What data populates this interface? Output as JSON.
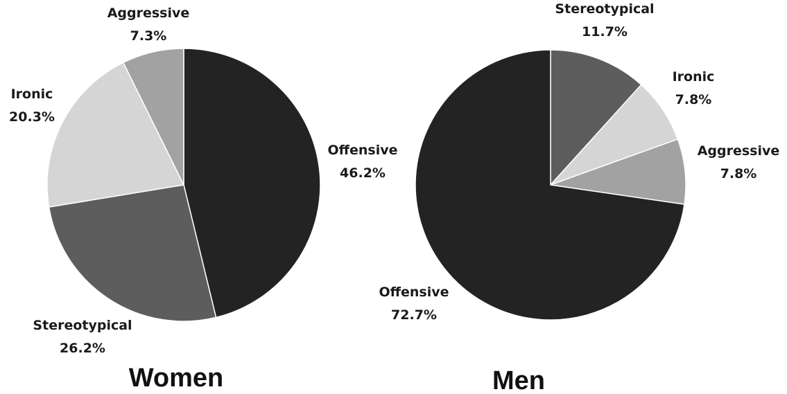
{
  "chart_data": [
    {
      "type": "pie",
      "title": "Women",
      "slices": [
        {
          "label": "Offensive",
          "value": 46.2,
          "display": "46.2%",
          "color": "#232323"
        },
        {
          "label": "Stereotypical",
          "value": 26.2,
          "display": "26.2%",
          "color": "#5d5d5d"
        },
        {
          "label": "Ironic",
          "value": 20.3,
          "display": "20.3%",
          "color": "#d5d5d5"
        },
        {
          "label": "Aggressive",
          "value": 7.3,
          "display": "7.3%",
          "color": "#a2a2a2"
        }
      ]
    },
    {
      "type": "pie",
      "title": "Men",
      "slices": [
        {
          "label": "Stereotypical",
          "value": 11.7,
          "display": "11.7%",
          "color": "#5d5d5d"
        },
        {
          "label": "Ironic",
          "value": 7.8,
          "display": "7.8%",
          "color": "#d5d5d5"
        },
        {
          "label": "Aggressive",
          "value": 7.8,
          "display": "7.8%",
          "color": "#a2a2a2"
        },
        {
          "label": "Offensive",
          "value": 72.7,
          "display": "72.7%",
          "color": "#232323"
        }
      ]
    }
  ]
}
